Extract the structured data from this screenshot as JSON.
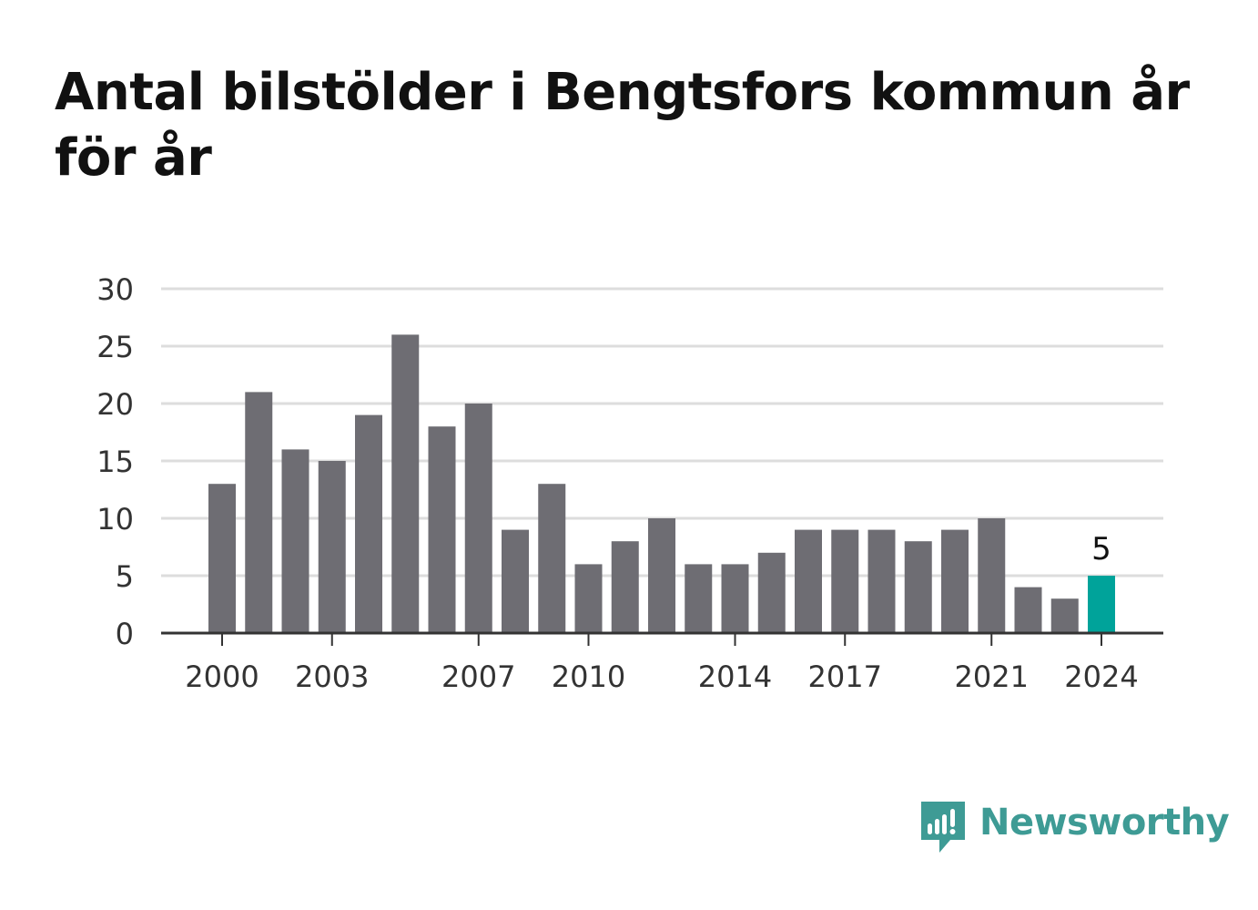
{
  "title": "Antal bilstölder i Bengtsfors kommun år för år",
  "brand": {
    "name": "Newsworthy",
    "icon": "newsworthy-logo-icon",
    "color": "#3e9b95"
  },
  "colors": {
    "bar": "#6e6d73",
    "highlight": "#00a39a",
    "grid": "#dddddd",
    "axis": "#333333"
  },
  "chart_data": {
    "type": "bar",
    "title": "Antal bilstölder i Bengtsfors kommun år för år",
    "xlabel": "",
    "ylabel": "",
    "categories": [
      2000,
      2001,
      2002,
      2003,
      2004,
      2005,
      2006,
      2007,
      2008,
      2009,
      2010,
      2011,
      2012,
      2013,
      2014,
      2015,
      2016,
      2017,
      2018,
      2019,
      2020,
      2021,
      2022,
      2023,
      2024
    ],
    "values": [
      13,
      21,
      16,
      15,
      19,
      26,
      18,
      20,
      9,
      13,
      6,
      8,
      10,
      6,
      6,
      7,
      9,
      9,
      9,
      8,
      9,
      10,
      4,
      3,
      5
    ],
    "highlight_category": 2024,
    "highlight_label": "5",
    "ylim": [
      0,
      30
    ],
    "yticks": [
      0,
      5,
      10,
      15,
      20,
      25,
      30
    ],
    "xticks": [
      2000,
      2003,
      2007,
      2010,
      2014,
      2017,
      2021,
      2024
    ],
    "grid": true,
    "legend": "none"
  }
}
